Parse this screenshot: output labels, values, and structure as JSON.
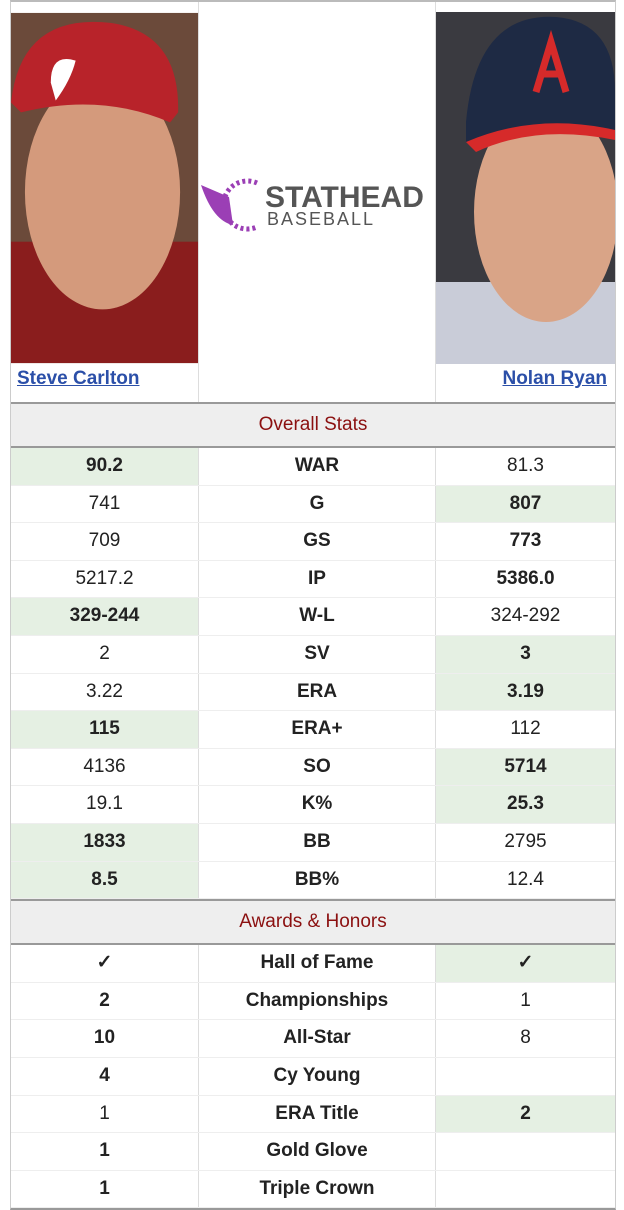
{
  "players": {
    "left": {
      "name": "Steve Carlton"
    },
    "right": {
      "name": "Nolan Ryan"
    }
  },
  "logo": {
    "word": "STATHEAD",
    "sub": "BASEBALL"
  },
  "sections": [
    {
      "title": "Overall Stats",
      "rows": [
        {
          "left": "90.2",
          "stat": "WAR",
          "right": "81.3",
          "lead": "left",
          "shade": "left"
        },
        {
          "left": "741",
          "stat": "G",
          "right": "807",
          "lead": "right",
          "shade": "right"
        },
        {
          "left": "709",
          "stat": "GS",
          "right": "773",
          "lead": "right",
          "shade": null
        },
        {
          "left": "5217.2",
          "stat": "IP",
          "right": "5386.0",
          "lead": "right",
          "shade": null
        },
        {
          "left": "329-244",
          "stat": "W-L",
          "right": "324-292",
          "lead": "left",
          "shade": "left"
        },
        {
          "left": "2",
          "stat": "SV",
          "right": "3",
          "lead": "right",
          "shade": "right"
        },
        {
          "left": "3.22",
          "stat": "ERA",
          "right": "3.19",
          "lead": "right",
          "shade": "right"
        },
        {
          "left": "115",
          "stat": "ERA+",
          "right": "112",
          "lead": "left",
          "shade": "left"
        },
        {
          "left": "4136",
          "stat": "SO",
          "right": "5714",
          "lead": "right",
          "shade": "right"
        },
        {
          "left": "19.1",
          "stat": "K%",
          "right": "25.3",
          "lead": "right",
          "shade": "right"
        },
        {
          "left": "1833",
          "stat": "BB",
          "right": "2795",
          "lead": "left",
          "shade": "left"
        },
        {
          "left": "8.5",
          "stat": "BB%",
          "right": "12.4",
          "lead": "left",
          "shade": "left"
        }
      ]
    },
    {
      "title": "Awards & Honors",
      "rows": [
        {
          "left": "✓",
          "stat": "Hall of Fame",
          "right": "✓",
          "lead": "both",
          "shade": "right"
        },
        {
          "left": "2",
          "stat": "Championships",
          "right": "1",
          "lead": "left",
          "shade": null
        },
        {
          "left": "10",
          "stat": "All-Star",
          "right": "8",
          "lead": "left",
          "shade": null
        },
        {
          "left": "4",
          "stat": "Cy Young",
          "right": null,
          "lead": "left",
          "shade": null
        },
        {
          "left": "1",
          "stat": "ERA Title",
          "right": "2",
          "lead": "right",
          "shade": "right"
        },
        {
          "left": "1",
          "stat": "Gold Glove",
          "right": null,
          "lead": "left",
          "shade": null
        },
        {
          "left": "1",
          "stat": "Triple Crown",
          "right": null,
          "lead": "left",
          "shade": null
        }
      ]
    }
  ]
}
